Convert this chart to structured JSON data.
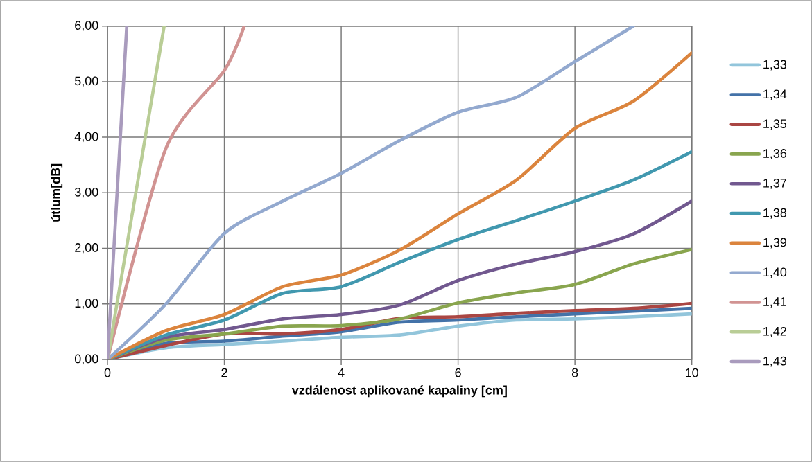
{
  "chart_data": {
    "type": "line",
    "xlabel": "vzdálenost aplikované kapaliny [cm]",
    "ylabel": "útlum[dB]",
    "x": [
      0,
      1,
      2,
      3,
      4,
      5,
      6,
      7,
      8,
      9,
      10
    ],
    "series": [
      {
        "name": "1,33",
        "color": "#92c5db",
        "values": [
          0,
          0.21,
          0.27,
          0.33,
          0.4,
          0.44,
          0.6,
          0.71,
          0.73,
          0.77,
          0.82
        ]
      },
      {
        "name": "1,34",
        "color": "#4372a8",
        "values": [
          0,
          0.29,
          0.33,
          0.42,
          0.5,
          0.67,
          0.71,
          0.77,
          0.82,
          0.87,
          0.92
        ]
      },
      {
        "name": "1,35",
        "color": "#aa4643",
        "values": [
          0,
          0.25,
          0.46,
          0.46,
          0.54,
          0.74,
          0.77,
          0.83,
          0.88,
          0.92,
          1.01
        ]
      },
      {
        "name": "1,36",
        "color": "#89a54e",
        "values": [
          0,
          0.35,
          0.46,
          0.6,
          0.61,
          0.73,
          1.02,
          1.2,
          1.35,
          1.72,
          1.98
        ]
      },
      {
        "name": "1,37",
        "color": "#71588f",
        "values": [
          0,
          0.4,
          0.54,
          0.73,
          0.81,
          0.98,
          1.42,
          1.72,
          1.94,
          2.26,
          2.85
        ]
      },
      {
        "name": "1,38",
        "color": "#4198af",
        "values": [
          0,
          0.44,
          0.71,
          1.19,
          1.31,
          1.75,
          2.16,
          2.5,
          2.85,
          3.23,
          3.74
        ]
      },
      {
        "name": "1,39",
        "color": "#db843d",
        "values": [
          0,
          0.52,
          0.81,
          1.31,
          1.52,
          1.97,
          2.62,
          3.23,
          4.16,
          4.65,
          5.52
        ]
      },
      {
        "name": "1,40",
        "color": "#93a9cf",
        "x": [
          0,
          1,
          2,
          3,
          4,
          5,
          6,
          7,
          8,
          9
        ],
        "values": [
          0,
          1.0,
          2.27,
          2.85,
          3.35,
          3.94,
          4.45,
          4.72,
          5.36,
          6.0
        ]
      },
      {
        "name": "1,41",
        "color": "#d19392",
        "x": [
          0,
          1,
          2,
          2.34
        ],
        "values": [
          0,
          3.8,
          5.2,
          6.0
        ]
      },
      {
        "name": "1,42",
        "color": "#b9cd96",
        "x": [
          0,
          0.97
        ],
        "values": [
          0,
          6.0
        ]
      },
      {
        "name": "1,43",
        "color": "#a99bbd",
        "x": [
          0,
          0.33
        ],
        "values": [
          0,
          6.0
        ]
      }
    ],
    "xlim": [
      0,
      10
    ],
    "ylim": [
      0,
      6
    ],
    "xticks": [
      0,
      2,
      4,
      6,
      8,
      10
    ],
    "yticks": [
      {
        "value": 0,
        "label": "0,00"
      },
      {
        "value": 1,
        "label": "1,00"
      },
      {
        "value": 2,
        "label": "2,00"
      },
      {
        "value": 3,
        "label": "3,00"
      },
      {
        "value": 4,
        "label": "4,00"
      },
      {
        "value": 5,
        "label": "5,00"
      },
      {
        "value": 6,
        "label": "6,00"
      }
    ],
    "grid": true,
    "legend": "right",
    "line_style": "solid"
  }
}
